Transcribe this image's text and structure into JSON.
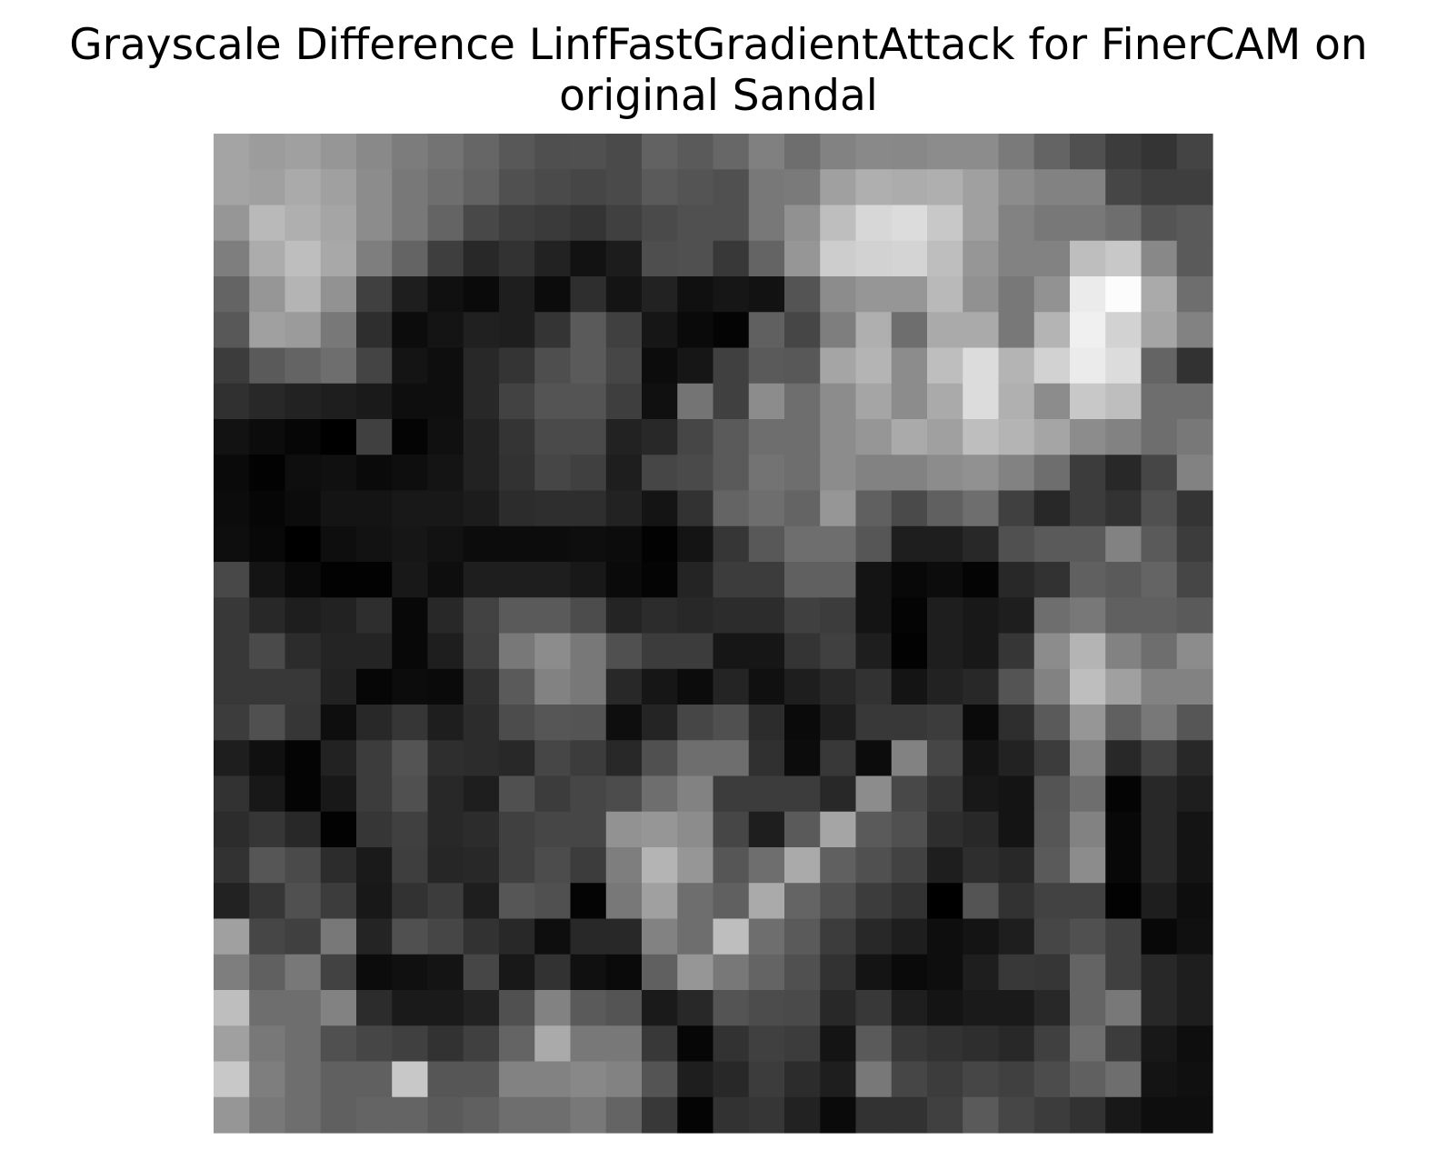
{
  "chart_data": {
    "type": "heatmap",
    "title_lines": [
      "Grayscale Difference LinfFastGradientAttack for FinerCAM on",
      "original Sandal"
    ],
    "colormap": "gray",
    "axes": "off",
    "grid": false,
    "rows": 28,
    "cols": 28,
    "value_range": [
      0,
      255
    ],
    "values": [
      [
        164,
        156,
        160,
        150,
        137,
        124,
        115,
        102,
        88,
        79,
        80,
        74,
        98,
        90,
        103,
        128,
        110,
        130,
        137,
        136,
        140,
        140,
        122,
        100,
        80,
        60,
        52,
        68
      ],
      [
        164,
        160,
        170,
        160,
        140,
        120,
        110,
        98,
        80,
        74,
        70,
        74,
        90,
        84,
        80,
        120,
        122,
        160,
        175,
        172,
        175,
        160,
        140,
        130,
        130,
        70,
        62,
        62
      ],
      [
        150,
        185,
        175,
        165,
        140,
        120,
        100,
        72,
        62,
        58,
        52,
        64,
        74,
        80,
        80,
        120,
        145,
        190,
        215,
        220,
        200,
        160,
        130,
        120,
        120,
        110,
        84,
        90
      ],
      [
        126,
        172,
        190,
        168,
        126,
        100,
        62,
        40,
        50,
        34,
        18,
        28,
        78,
        80,
        56,
        100,
        150,
        205,
        210,
        212,
        190,
        150,
        130,
        130,
        190,
        200,
        136,
        90
      ],
      [
        100,
        150,
        180,
        146,
        64,
        30,
        16,
        10,
        30,
        12,
        46,
        20,
        34,
        16,
        22,
        18,
        84,
        140,
        150,
        150,
        185,
        145,
        120,
        146,
        235,
        252,
        170,
        110
      ],
      [
        88,
        160,
        155,
        120,
        46,
        12,
        20,
        32,
        30,
        52,
        90,
        64,
        22,
        10,
        4,
        96,
        70,
        126,
        175,
        110,
        170,
        170,
        120,
        180,
        240,
        210,
        165,
        130
      ],
      [
        60,
        90,
        100,
        110,
        68,
        20,
        14,
        40,
        52,
        78,
        90,
        70,
        12,
        22,
        64,
        90,
        88,
        165,
        180,
        140,
        190,
        220,
        180,
        210,
        235,
        220,
        100,
        50
      ],
      [
        48,
        40,
        34,
        30,
        26,
        14,
        14,
        40,
        66,
        84,
        84,
        62,
        16,
        116,
        64,
        140,
        110,
        140,
        165,
        140,
        170,
        220,
        176,
        140,
        200,
        190,
        110,
        110
      ],
      [
        18,
        12,
        6,
        0,
        64,
        4,
        16,
        34,
        52,
        74,
        74,
        34,
        40,
        70,
        90,
        110,
        110,
        140,
        150,
        170,
        160,
        190,
        180,
        165,
        140,
        130,
        110,
        120
      ],
      [
        10,
        2,
        14,
        16,
        10,
        14,
        20,
        34,
        50,
        70,
        64,
        30,
        70,
        74,
        90,
        115,
        110,
        140,
        130,
        130,
        140,
        145,
        130,
        110,
        60,
        40,
        70,
        130
      ],
      [
        12,
        6,
        12,
        20,
        20,
        24,
        24,
        28,
        44,
        46,
        46,
        34,
        20,
        50,
        100,
        110,
        100,
        150,
        96,
        74,
        96,
        110,
        64,
        40,
        60,
        50,
        80,
        52
      ],
      [
        14,
        8,
        0,
        14,
        18,
        22,
        18,
        12,
        12,
        12,
        14,
        12,
        2,
        20,
        54,
        88,
        110,
        110,
        86,
        30,
        30,
        40,
        80,
        90,
        90,
        130,
        90,
        60
      ],
      [
        72,
        20,
        10,
        2,
        2,
        24,
        14,
        30,
        30,
        30,
        24,
        10,
        4,
        36,
        60,
        60,
        96,
        96,
        20,
        8,
        12,
        4,
        40,
        50,
        96,
        90,
        100,
        70
      ],
      [
        56,
        40,
        30,
        34,
        46,
        8,
        40,
        66,
        90,
        90,
        76,
        36,
        44,
        40,
        44,
        44,
        64,
        60,
        20,
        4,
        30,
        24,
        30,
        110,
        120,
        96,
        96,
        90
      ],
      [
        56,
        74,
        44,
        36,
        36,
        8,
        30,
        64,
        120,
        140,
        120,
        80,
        60,
        60,
        22,
        22,
        52,
        64,
        30,
        2,
        30,
        24,
        54,
        140,
        180,
        130,
        110,
        140
      ],
      [
        56,
        56,
        56,
        34,
        6,
        12,
        10,
        48,
        90,
        130,
        120,
        40,
        22,
        12,
        36,
        16,
        30,
        40,
        50,
        20,
        34,
        40,
        84,
        130,
        190,
        160,
        130,
        130
      ],
      [
        60,
        80,
        54,
        14,
        40,
        54,
        30,
        44,
        76,
        86,
        84,
        14,
        36,
        70,
        80,
        44,
        10,
        30,
        56,
        56,
        60,
        10,
        46,
        90,
        150,
        96,
        120,
        86
      ],
      [
        30,
        16,
        4,
        34,
        60,
        84,
        46,
        44,
        40,
        70,
        60,
        40,
        80,
        110,
        110,
        48,
        12,
        56,
        12,
        130,
        70,
        20,
        34,
        60,
        130,
        40,
        66,
        40
      ],
      [
        50,
        24,
        4,
        24,
        60,
        80,
        40,
        30,
        80,
        60,
        70,
        76,
        110,
        130,
        60,
        60,
        60,
        40,
        140,
        72,
        54,
        24,
        20,
        84,
        110,
        4,
        40,
        30
      ],
      [
        44,
        54,
        40,
        2,
        54,
        64,
        40,
        44,
        64,
        70,
        70,
        146,
        150,
        140,
        70,
        30,
        90,
        165,
        90,
        80,
        46,
        40,
        20,
        86,
        130,
        8,
        40,
        20
      ],
      [
        50,
        86,
        74,
        44,
        26,
        62,
        38,
        40,
        64,
        76,
        60,
        126,
        180,
        150,
        86,
        110,
        170,
        96,
        80,
        66,
        30,
        46,
        40,
        90,
        140,
        8,
        40,
        20
      ],
      [
        34,
        54,
        80,
        60,
        24,
        50,
        60,
        30,
        86,
        80,
        4,
        120,
        160,
        110,
        96,
        170,
        100,
        80,
        60,
        50,
        0,
        84,
        50,
        66,
        66,
        2,
        30,
        14
      ],
      [
        160,
        70,
        64,
        120,
        36,
        80,
        70,
        50,
        40,
        14,
        40,
        40,
        130,
        110,
        190,
        110,
        90,
        60,
        40,
        30,
        14,
        20,
        30,
        70,
        80,
        64,
        8,
        16
      ],
      [
        126,
        96,
        120,
        66,
        12,
        16,
        20,
        70,
        24,
        50,
        16,
        10,
        96,
        150,
        120,
        100,
        80,
        50,
        20,
        10,
        14,
        30,
        56,
        54,
        100,
        64,
        40,
        30
      ],
      [
        190,
        110,
        110,
        130,
        44,
        26,
        26,
        34,
        80,
        130,
        90,
        84,
        26,
        40,
        84,
        76,
        74,
        40,
        56,
        30,
        20,
        26,
        26,
        40,
        100,
        120,
        40,
        30
      ],
      [
        160,
        120,
        110,
        80,
        70,
        64,
        50,
        64,
        100,
        170,
        120,
        120,
        56,
        6,
        50,
        64,
        60,
        20,
        90,
        56,
        50,
        46,
        40,
        64,
        110,
        60,
        24,
        14
      ],
      [
        200,
        126,
        110,
        96,
        96,
        200,
        86,
        86,
        130,
        130,
        136,
        130,
        84,
        30,
        40,
        60,
        44,
        30,
        120,
        70,
        60,
        70,
        64,
        76,
        96,
        110,
        20,
        16
      ],
      [
        150,
        120,
        110,
        96,
        100,
        100,
        90,
        96,
        110,
        110,
        120,
        100,
        56,
        4,
        50,
        54,
        34,
        10,
        50,
        50,
        64,
        90,
        70,
        60,
        50,
        24,
        14,
        14
      ]
    ]
  }
}
